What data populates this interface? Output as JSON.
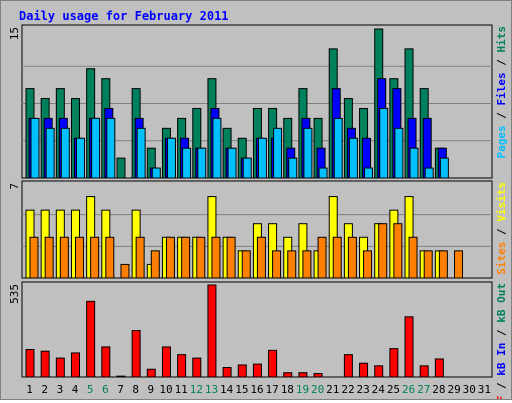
{
  "title": "Daily usage for February 2011",
  "colors": {
    "hits": "#00805c",
    "files": "#0000ff",
    "pages": "#00c0ff",
    "visits": "#ffff00",
    "sites": "#ff8000",
    "kb": "#ff0000",
    "title": "#0000ff",
    "plot_bg": "#c0c0c0",
    "grid": "#808080",
    "weekend_label": "#00805c",
    "weekday_label": "#000000"
  },
  "chart_data": [
    {
      "type": "bar",
      "panel": "hits-files-pages",
      "ymax_label": "15",
      "ylim": [
        0,
        15
      ],
      "right_labels": [
        {
          "text": "Pages",
          "color": "#00c0ff"
        },
        {
          "text": " / ",
          "color": "#000000"
        },
        {
          "text": "Files",
          "color": "#0000ff"
        },
        {
          "text": " / ",
          "color": "#000000"
        },
        {
          "text": "Hits",
          "color": "#00805c"
        }
      ],
      "categories": [
        "1",
        "2",
        "3",
        "4",
        "5",
        "6",
        "7",
        "8",
        "9",
        "10",
        "11",
        "12",
        "13",
        "14",
        "15",
        "16",
        "17",
        "18",
        "19",
        "20",
        "21",
        "22",
        "23",
        "24",
        "25",
        "26",
        "27",
        "28",
        "29",
        "30",
        "31"
      ],
      "series": [
        {
          "name": "Hits",
          "values": [
            9,
            8,
            9,
            8,
            11,
            10,
            2,
            9,
            3,
            5,
            6,
            7,
            10,
            5,
            4,
            7,
            7,
            6,
            9,
            6,
            13,
            8,
            7,
            15,
            10,
            13,
            9,
            3,
            0,
            0,
            0
          ]
        },
        {
          "name": "Files",
          "values": [
            6,
            6,
            6,
            4,
            6,
            7,
            0,
            6,
            1,
            4,
            4,
            3,
            7,
            3,
            2,
            4,
            4,
            3,
            6,
            3,
            9,
            5,
            4,
            10,
            9,
            6,
            6,
            3,
            0,
            0,
            0
          ]
        },
        {
          "name": "Pages",
          "values": [
            6,
            5,
            5,
            4,
            6,
            6,
            0,
            5,
            1,
            4,
            3,
            3,
            6,
            3,
            2,
            4,
            5,
            2,
            5,
            1,
            6,
            4,
            1,
            7,
            5,
            3,
            1,
            2,
            0,
            0,
            0
          ]
        }
      ]
    },
    {
      "type": "bar",
      "panel": "visits-sites",
      "ymax_label": "7",
      "ylim": [
        0,
        7
      ],
      "right_labels": [
        {
          "text": "Sites",
          "color": "#ff8000"
        },
        {
          "text": " / ",
          "color": "#000000"
        },
        {
          "text": "Visits",
          "color": "#ffff00"
        }
      ],
      "categories": [
        "1",
        "2",
        "3",
        "4",
        "5",
        "6",
        "7",
        "8",
        "9",
        "10",
        "11",
        "12",
        "13",
        "14",
        "15",
        "16",
        "17",
        "18",
        "19",
        "20",
        "21",
        "22",
        "23",
        "24",
        "25",
        "26",
        "27",
        "28",
        "29",
        "30",
        "31"
      ],
      "series": [
        {
          "name": "Visits",
          "values": [
            5,
            5,
            5,
            5,
            6,
            5,
            0,
            5,
            1,
            3,
            3,
            3,
            6,
            3,
            2,
            4,
            4,
            3,
            4,
            2,
            6,
            4,
            3,
            4,
            5,
            6,
            2,
            2,
            0,
            0,
            0
          ]
        },
        {
          "name": "Sites",
          "values": [
            3,
            3,
            3,
            3,
            3,
            3,
            1,
            3,
            2,
            3,
            3,
            3,
            3,
            3,
            2,
            3,
            2,
            2,
            2,
            3,
            3,
            3,
            2,
            4,
            4,
            3,
            2,
            2,
            2,
            0,
            0
          ]
        }
      ]
    },
    {
      "type": "bar",
      "panel": "kbytes",
      "ymax_label": "535",
      "ylim": [
        0,
        535
      ],
      "right_labels": [
        {
          "text": "kB F",
          "color": "#ff0000"
        },
        {
          "text": " / ",
          "color": "#000000"
        },
        {
          "text": "kB In",
          "color": "#0000ff"
        },
        {
          "text": " / ",
          "color": "#000000"
        },
        {
          "text": "kB Out",
          "color": "#00805c"
        }
      ],
      "categories": [
        "1",
        "2",
        "3",
        "4",
        "5",
        "6",
        "7",
        "8",
        "9",
        "10",
        "11",
        "12",
        "13",
        "14",
        "15",
        "16",
        "17",
        "18",
        "19",
        "20",
        "21",
        "22",
        "23",
        "24",
        "25",
        "26",
        "27",
        "28",
        "29",
        "30",
        "31"
      ],
      "series": [
        {
          "name": "kB F",
          "values": [
            160,
            150,
            110,
            140,
            440,
            175,
            5,
            270,
            45,
            175,
            130,
            110,
            535,
            55,
            70,
            75,
            155,
            25,
            25,
            20,
            0,
            130,
            80,
            65,
            165,
            350,
            65,
            105,
            0,
            0,
            0
          ]
        }
      ]
    }
  ],
  "x_axis": {
    "days": [
      "1",
      "2",
      "3",
      "4",
      "5",
      "6",
      "7",
      "8",
      "9",
      "10",
      "11",
      "12",
      "13",
      "14",
      "15",
      "16",
      "17",
      "18",
      "19",
      "20",
      "21",
      "22",
      "23",
      "24",
      "25",
      "26",
      "27",
      "28",
      "29",
      "30",
      "31"
    ],
    "weekend_days": [
      "5",
      "6",
      "12",
      "13",
      "19",
      "20",
      "26",
      "27"
    ]
  }
}
